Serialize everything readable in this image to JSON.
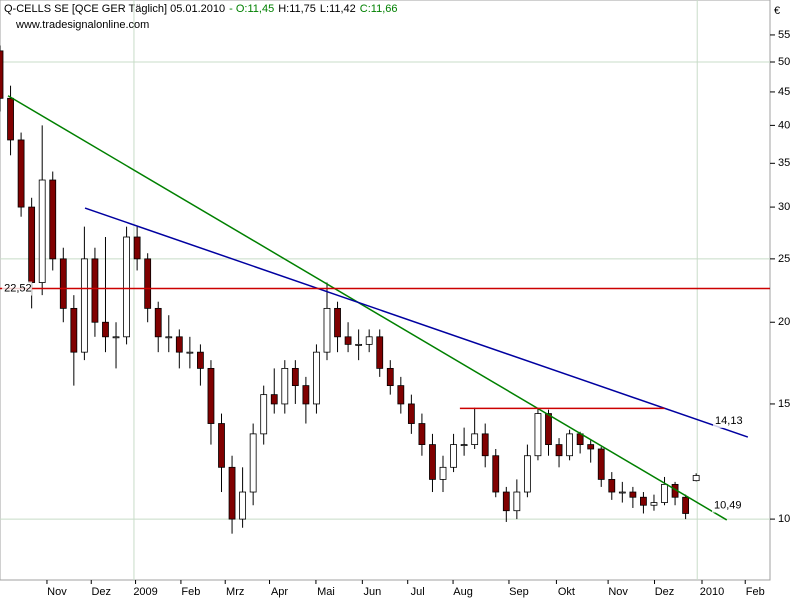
{
  "chart_data": {
    "type": "candlestick",
    "title": "Q-CELLS SE [QCE GER  Täglich] 05.01.2010",
    "quote_parts": [
      {
        "text": "- O:11,45",
        "color": "#008000"
      },
      {
        "text": "H:11,75",
        "color": "#000000"
      },
      {
        "text": "L:11,42",
        "color": "#000000"
      },
      {
        "text": "C:11,66",
        "color": "#008000"
      }
    ],
    "subtitle": "www.tradesignalonline.com",
    "currency": "€",
    "log_scale": true,
    "ylim": [
      8.07,
      62.2
    ],
    "yticks": [
      10,
      15,
      20,
      25,
      30,
      35,
      40,
      45,
      50,
      55
    ],
    "ygrid": [
      10,
      25,
      50
    ],
    "xlim": [
      0,
      73
    ],
    "xticks": [
      {
        "value": 5.4,
        "label": "Nov"
      },
      {
        "value": 9.6,
        "label": "Dez"
      },
      {
        "value": 13.8,
        "label": "2009"
      },
      {
        "value": 18.1,
        "label": "Feb"
      },
      {
        "value": 22.3,
        "label": "Mrz"
      },
      {
        "value": 26.5,
        "label": "Apr"
      },
      {
        "value": 30.9,
        "label": "Mai"
      },
      {
        "value": 35.3,
        "label": "Jun"
      },
      {
        "value": 39.6,
        "label": "Jul"
      },
      {
        "value": 43.9,
        "label": "Aug"
      },
      {
        "value": 49.2,
        "label": "Sep"
      },
      {
        "value": 53.7,
        "label": "Okt"
      },
      {
        "value": 58.6,
        "label": "Nov"
      },
      {
        "value": 63.0,
        "label": "Dez"
      },
      {
        "value": 67.5,
        "label": "2010"
      },
      {
        "value": 71.6,
        "label": "Feb"
      }
    ],
    "xgrid": [
      12.7,
      66.1
    ],
    "up_color": "#ffffff",
    "down_color": "#800000",
    "wick_color": "#000000",
    "x": [
      0,
      1,
      2,
      3,
      4,
      5,
      6,
      7,
      8,
      9,
      10,
      11,
      12,
      13,
      14,
      15,
      16,
      17,
      18,
      19,
      20,
      21,
      22,
      23,
      24,
      25,
      26,
      27,
      28,
      29,
      30,
      31,
      32,
      33,
      34,
      35,
      36,
      37,
      38,
      39,
      40,
      41,
      42,
      43,
      44,
      45,
      46,
      47,
      48,
      49,
      50,
      51,
      52,
      53,
      54,
      55,
      56,
      57,
      58,
      59,
      60,
      61,
      62,
      63,
      64,
      65,
      66
    ],
    "open": [
      52,
      44,
      38,
      30,
      23,
      33,
      25,
      21,
      18,
      25,
      20,
      19,
      19,
      27,
      25,
      21,
      19,
      19,
      18,
      18,
      17,
      14,
      12,
      10,
      11,
      13.5,
      15.5,
      15,
      17,
      16,
      15,
      18,
      21,
      19,
      18.5,
      18.5,
      19,
      17,
      16,
      15,
      14,
      13,
      11.5,
      12,
      13,
      13,
      13.5,
      12.5,
      11,
      10.3,
      11,
      12.5,
      14.5,
      13,
      12.5,
      13.5,
      13,
      12.8,
      11.5,
      11,
      11,
      10.8,
      10.5,
      10.6,
      11.3,
      10.8,
      11.45
    ],
    "high": [
      53,
      46,
      39,
      31,
      40,
      34,
      26,
      22,
      28,
      26,
      27,
      20,
      28,
      28,
      25.5,
      21.5,
      20.5,
      19.5,
      19,
      18.5,
      17.5,
      14.5,
      12.5,
      12,
      14,
      16,
      17,
      17.5,
      17.5,
      16.5,
      18.5,
      23,
      21.5,
      20,
      19.5,
      19.5,
      19.5,
      17.5,
      16.5,
      15.5,
      14.5,
      13.5,
      12.5,
      13.5,
      13.8,
      14.8,
      14,
      12.8,
      11.2,
      11.5,
      13,
      14.8,
      14.7,
      13.3,
      13.7,
      13.6,
      13.2,
      12.9,
      11.8,
      11.4,
      11.2,
      11,
      10.9,
      11.6,
      11.4,
      10.9,
      11.75
    ],
    "low": [
      42,
      36,
      29,
      21,
      22,
      24,
      20,
      16,
      17.5,
      19,
      18,
      17,
      18.5,
      24,
      20,
      18,
      18,
      17,
      17,
      16,
      13,
      11,
      9.5,
      9.7,
      10.5,
      13,
      14.5,
      14.5,
      15,
      14,
      14.5,
      17.5,
      18,
      18,
      17.5,
      18,
      16.5,
      15.5,
      14.5,
      13.5,
      12.5,
      11,
      11,
      11.8,
      12.5,
      12.8,
      12,
      10.8,
      9.9,
      10,
      10.8,
      12.3,
      12.5,
      12,
      12.3,
      12.6,
      12.2,
      11.2,
      10.7,
      10.6,
      10.4,
      10.2,
      10.3,
      10.5,
      10.5,
      10,
      11.42
    ],
    "close": [
      44,
      38,
      30,
      23,
      33,
      25,
      21,
      18,
      25,
      20,
      19,
      19,
      27,
      25,
      21,
      19,
      19,
      18,
      18,
      17,
      14,
      12,
      10,
      11,
      13.5,
      15.5,
      15,
      17,
      16,
      15,
      18,
      21,
      19,
      18.5,
      18.5,
      19,
      17,
      16,
      15,
      14,
      13,
      11.5,
      12,
      13,
      13,
      13.5,
      12.5,
      11,
      10.3,
      11,
      12.5,
      14.5,
      13,
      12.5,
      13.5,
      13,
      12.8,
      11.5,
      11,
      11,
      10.8,
      10.5,
      10.6,
      11.3,
      10.8,
      10.2,
      11.66
    ],
    "lines": [
      {
        "x": [
          0.76,
          68.9
        ],
        "y": [
          44.4,
          9.97
        ],
        "color": "#008000",
        "label": "10,49",
        "label_at": [
          67.5,
          10.49
        ]
      },
      {
        "x": [
          8.06,
          70.9
        ],
        "y": [
          29.9,
          13.35
        ],
        "color": "#0000a0",
        "label": "14,13",
        "label_at": [
          67.6,
          14.13
        ]
      },
      {
        "x": [
          0,
          73
        ],
        "y": [
          22.52,
          22.52
        ],
        "color": "#cc0000",
        "label": "22,52",
        "label_at": [
          0.2,
          22.52
        ]
      },
      {
        "x": [
          43.6,
          63.0
        ],
        "y": [
          14.77,
          14.77
        ],
        "color": "#cc0000"
      }
    ]
  }
}
